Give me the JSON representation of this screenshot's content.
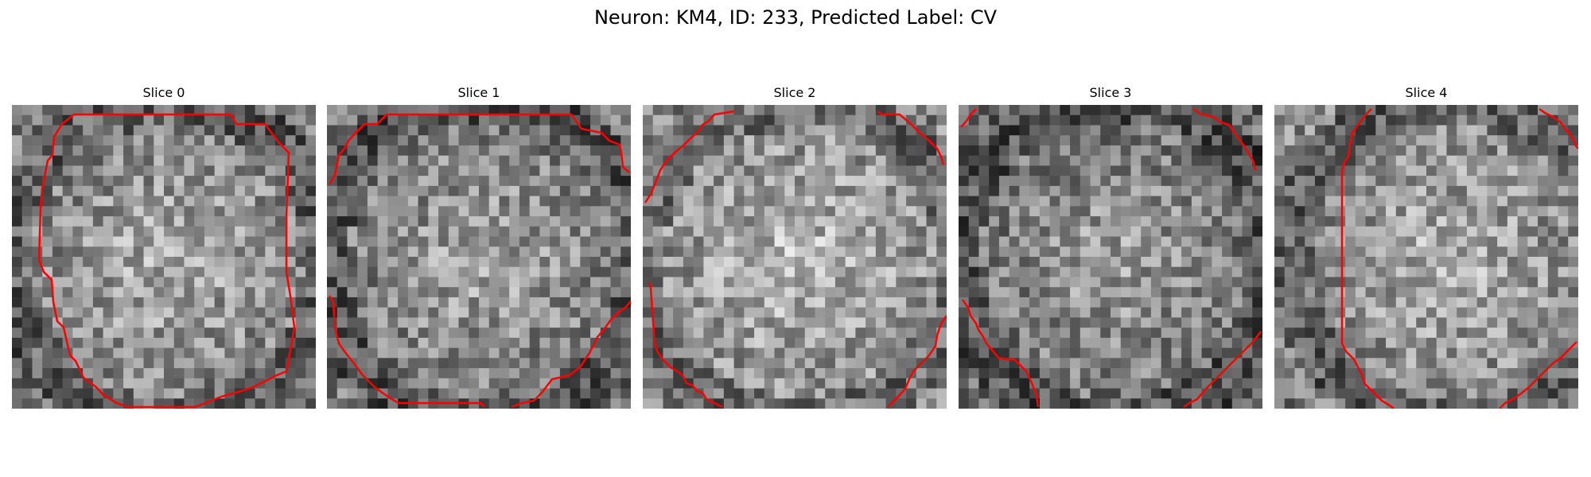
{
  "figure": {
    "title": "Neuron: KM4, ID: 233, Predicted Label: CV"
  },
  "panels": [
    {
      "title": "Slice 0",
      "mean_brightness": 0.5
    },
    {
      "title": "Slice 1",
      "mean_brightness": 0.47
    },
    {
      "title": "Slice 2",
      "mean_brightness": 0.55
    },
    {
      "title": "Slice 3",
      "mean_brightness": 0.45
    },
    {
      "title": "Slice 4",
      "mean_brightness": 0.52
    }
  ],
  "colors": {
    "contour": "#ff0000",
    "background": "#ffffff"
  }
}
